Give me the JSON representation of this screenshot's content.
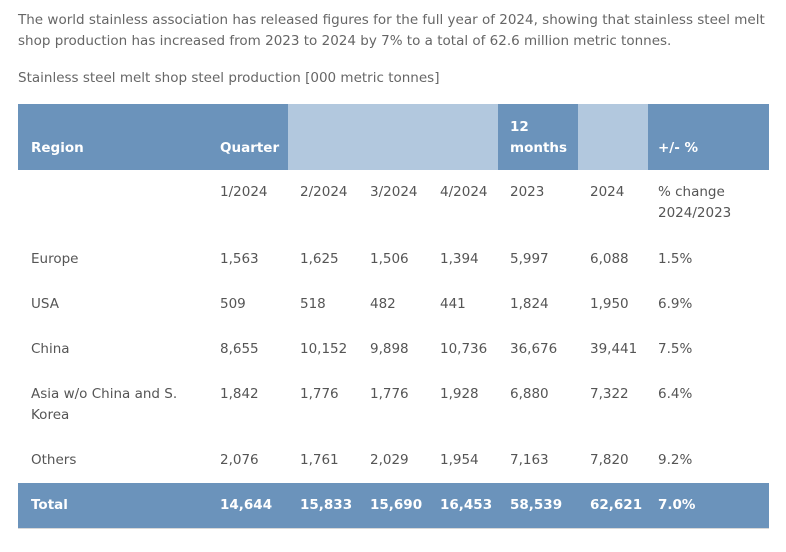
{
  "intro": "The world stainless association has released figures for the full year of 2024, showing that stainless steel melt shop production has increased from 2023 to 2024 by 7% to a total of 62.6 million metric tonnes.",
  "caption": "Stainless steel melt shop steel production [000 metric tonnes]",
  "colors": {
    "header_dark": "#6b93bb",
    "header_light": "#b2c8de",
    "rule": "#d8d8d8"
  },
  "table": {
    "header": {
      "region": "Region",
      "quarter": "Quarter",
      "months": "12 months",
      "change": "+/- %"
    },
    "subheader": {
      "q1": "1/2024",
      "q2": "2/2024",
      "q3": "3/2024",
      "q4": "4/2024",
      "y2023": "2023",
      "y2024": "2024",
      "change": "% change 2024/2023"
    },
    "rows": [
      {
        "region": "Europe",
        "q1": "1,563",
        "q2": "1,625",
        "q3": "1,506",
        "q4": "1,394",
        "y2023": "5,997",
        "y2024": "6,088",
        "change": "1.5%"
      },
      {
        "region": "USA",
        "q1": "509",
        "q2": "518",
        "q3": "482",
        "q4": "441",
        "y2023": "1,824",
        "y2024": "1,950",
        "change": "6.9%"
      },
      {
        "region": "China",
        "q1": "8,655",
        "q2": "10,152",
        "q3": "9,898",
        "q4": "10,736",
        "y2023": "36,676",
        "y2024": "39,441",
        "change": "7.5%"
      },
      {
        "region": "Asia w/o China and S. Korea",
        "q1": "1,842",
        "q2": "1,776",
        "q3": "1,776",
        "q4": "1,928",
        "y2023": "6,880",
        "y2024": "7,322",
        "change": "6.4%"
      },
      {
        "region": "Others",
        "q1": "2,076",
        "q2": "1,761",
        "q3": "2,029",
        "q4": "1,954",
        "y2023": "7,163",
        "y2024": "7,820",
        "change": "9.2%"
      }
    ],
    "total": {
      "region": "Total",
      "q1": "14,644",
      "q2": "15,833",
      "q3": "15,690",
      "q4": "16,453",
      "y2023": "58,539",
      "y2024": "62,621",
      "change": "7.0%"
    }
  }
}
